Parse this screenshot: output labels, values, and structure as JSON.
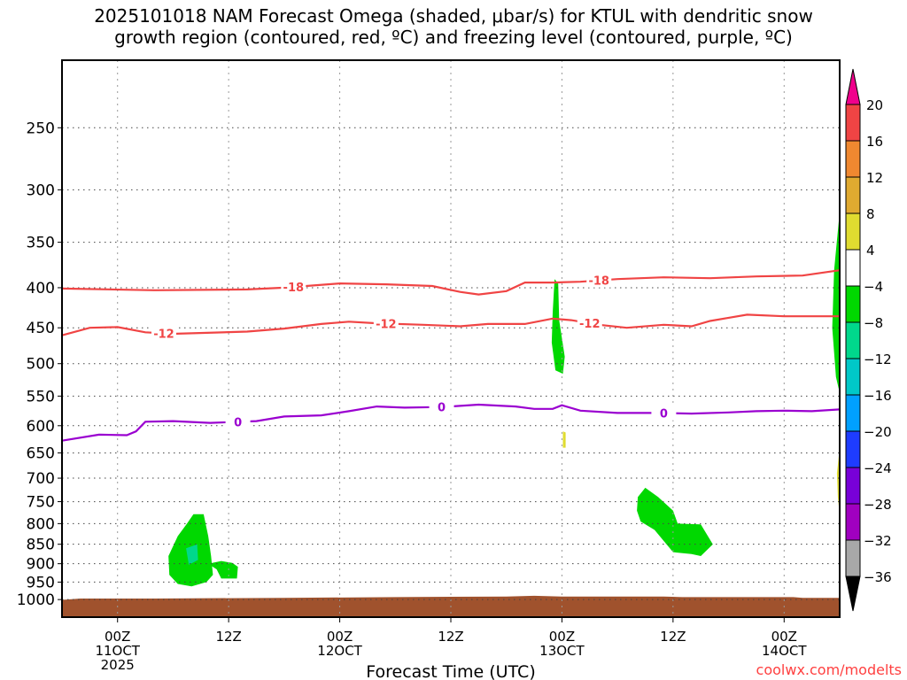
{
  "chart_data": {
    "type": "heatmap",
    "title_line1": "2025101018 NAM Forecast Omega (shaded, μbar/s) for KTUL with dendritic snow",
    "title_line2": "growth region (contoured, red, ºC) and freezing level (contoured, purple, ºC)",
    "xlabel": "Forecast Time (UTC)",
    "credit": "coolwx.com/modelts",
    "x_units": "hours after 2025101018",
    "xlim": [
      0,
      84
    ],
    "ylim_hPa": [
      205,
      1053
    ],
    "y_scale": "log",
    "y_ticks": [
      250,
      300,
      350,
      400,
      450,
      500,
      550,
      600,
      650,
      700,
      750,
      800,
      850,
      900,
      950,
      1000
    ],
    "x_ticks": [
      {
        "hour": 6,
        "label": "00Z",
        "sub": "11OCT",
        "sub2": "2025"
      },
      {
        "hour": 18,
        "label": "12Z"
      },
      {
        "hour": 30,
        "label": "00Z",
        "sub": "12OCT"
      },
      {
        "hour": 42,
        "label": "12Z"
      },
      {
        "hour": 54,
        "label": "00Z",
        "sub": "13OCT"
      },
      {
        "hour": 66,
        "label": "12Z"
      },
      {
        "hour": 78,
        "label": "00Z",
        "sub": "14OCT"
      }
    ],
    "grid": true,
    "colorbar": {
      "labels": [
        "20",
        "16",
        "12",
        "8",
        "4",
        "-4",
        "-8",
        "-12",
        "-16",
        "-20",
        "-24",
        "-28",
        "-32",
        "-36"
      ],
      "colors": [
        "#f04444",
        "#f08830",
        "#e0aa30",
        "#e0dc30",
        "#ffffff",
        "#00d800",
        "#00d88c",
        "#00c8c8",
        "#00a0ff",
        "#1e3cff",
        "#7800d8",
        "#a000c0",
        "#a8a8a8"
      ],
      "over_color": "#f0008c",
      "under_color": "#000000"
    },
    "contours": [
      {
        "name": "-18",
        "color": "#f04444",
        "labels": [
          {
            "hour": 25,
            "text": "-18"
          },
          {
            "hour": 58,
            "text": "-18"
          }
        ],
        "points": [
          [
            0,
            401
          ],
          [
            10,
            403
          ],
          [
            20,
            402
          ],
          [
            24,
            400
          ],
          [
            30,
            395
          ],
          [
            35,
            396
          ],
          [
            40,
            398
          ],
          [
            43,
            405
          ],
          [
            45,
            408
          ],
          [
            48,
            404
          ],
          [
            50,
            394
          ],
          [
            53,
            394
          ],
          [
            56,
            393
          ],
          [
            60,
            390
          ],
          [
            65,
            388
          ],
          [
            70,
            389
          ],
          [
            75,
            387
          ],
          [
            80,
            386
          ],
          [
            84,
            380
          ]
        ]
      },
      {
        "name": "-12",
        "color": "#f04444",
        "labels": [
          {
            "hour": 11,
            "text": "-12"
          },
          {
            "hour": 35,
            "text": "-12"
          },
          {
            "hour": 57,
            "text": "-12"
          }
        ],
        "points": [
          [
            0,
            460
          ],
          [
            3,
            450
          ],
          [
            6,
            449
          ],
          [
            9,
            456
          ],
          [
            12,
            458
          ],
          [
            20,
            455
          ],
          [
            24,
            451
          ],
          [
            28,
            445
          ],
          [
            31,
            442
          ],
          [
            34,
            444
          ],
          [
            39,
            446
          ],
          [
            43,
            448
          ],
          [
            46,
            445
          ],
          [
            50,
            445
          ],
          [
            53,
            438
          ],
          [
            55,
            440
          ],
          [
            58,
            446
          ],
          [
            61,
            450
          ],
          [
            65,
            446
          ],
          [
            68,
            448
          ],
          [
            70,
            441
          ],
          [
            72,
            437
          ],
          [
            74,
            433
          ],
          [
            78,
            435
          ],
          [
            84,
            435
          ]
        ]
      },
      {
        "name": "0",
        "color": "#9a00d0",
        "labels": [
          {
            "hour": 19,
            "text": "0"
          },
          {
            "hour": 41,
            "text": "0"
          },
          {
            "hour": 65,
            "text": "0"
          }
        ],
        "points": [
          [
            0,
            627
          ],
          [
            4,
            616
          ],
          [
            7,
            617
          ],
          [
            8,
            610
          ],
          [
            9,
            593
          ],
          [
            12,
            592
          ],
          [
            16,
            595
          ],
          [
            21,
            592
          ],
          [
            24,
            584
          ],
          [
            28,
            582
          ],
          [
            31,
            575
          ],
          [
            34,
            567
          ],
          [
            37,
            569
          ],
          [
            41,
            568
          ],
          [
            45,
            564
          ],
          [
            49,
            567
          ],
          [
            51,
            571
          ],
          [
            53,
            571
          ],
          [
            54,
            565
          ],
          [
            56,
            574
          ],
          [
            60,
            578
          ],
          [
            64,
            578
          ],
          [
            68,
            579
          ],
          [
            72,
            577
          ],
          [
            75,
            575
          ],
          [
            78,
            574
          ],
          [
            81,
            575
          ],
          [
            84,
            572
          ]
        ]
      }
    ],
    "shaded_regions": [
      {
        "value_range": "-8 to -4",
        "color": "#00d800",
        "points": [
          [
            11.5,
            880
          ],
          [
            12.5,
            830
          ],
          [
            13.5,
            800
          ],
          [
            14.2,
            778
          ],
          [
            15.3,
            778
          ],
          [
            15.8,
            830
          ],
          [
            16.1,
            880
          ],
          [
            16.3,
            930
          ],
          [
            15.6,
            950
          ],
          [
            14,
            962
          ],
          [
            12.5,
            955
          ],
          [
            11.6,
            930
          ]
        ]
      },
      {
        "value_range": "-8 to -4",
        "color": "#00d800",
        "points": [
          [
            15.8,
            900
          ],
          [
            17.2,
            893
          ],
          [
            18.4,
            898
          ],
          [
            19,
            908
          ],
          [
            18.9,
            940
          ],
          [
            17.2,
            940
          ],
          [
            16.7,
            915
          ]
        ]
      },
      {
        "value_range": "-12 to -8",
        "color": "#00d88c",
        "points": [
          [
            13.4,
            860
          ],
          [
            14.6,
            850
          ],
          [
            14.7,
            890
          ],
          [
            13.7,
            903
          ]
        ]
      },
      {
        "value_range": "-8 to -4",
        "color": "#00d800",
        "points": [
          [
            53.2,
            390
          ],
          [
            53.6,
            395
          ],
          [
            53.7,
            440
          ],
          [
            54.3,
            490
          ],
          [
            54.1,
            515
          ],
          [
            53.3,
            510
          ],
          [
            52.9,
            470
          ],
          [
            53.0,
            430
          ]
        ]
      },
      {
        "value_range": "4 to 8",
        "color": "#e0dc30",
        "points": [
          [
            54.1,
            610
          ],
          [
            54.4,
            612
          ],
          [
            54.4,
            640
          ],
          [
            54.1,
            640
          ]
        ]
      },
      {
        "value_range": "-8 to -4",
        "color": "#00d800",
        "points": [
          [
            62.2,
            740
          ],
          [
            63,
            720
          ],
          [
            64.4,
            740
          ],
          [
            66,
            770
          ],
          [
            66.5,
            800
          ],
          [
            69,
            802
          ],
          [
            70.3,
            850
          ],
          [
            69,
            880
          ],
          [
            68,
            875
          ],
          [
            66,
            870
          ],
          [
            64,
            815
          ],
          [
            62.5,
            795
          ],
          [
            62.1,
            770
          ]
        ]
      },
      {
        "value_range": "-8 to -4",
        "color": "#00d800",
        "points": [
          [
            84,
            320
          ],
          [
            83.4,
            380
          ],
          [
            83.2,
            450
          ],
          [
            83.6,
            520
          ],
          [
            84,
            545
          ]
        ]
      },
      {
        "value_range": "4 to 8",
        "color": "#e0dc30",
        "points": [
          [
            84,
            640
          ],
          [
            83.7,
            690
          ],
          [
            83.8,
            740
          ],
          [
            84,
            780
          ]
        ]
      }
    ],
    "terrain": {
      "color": "#a0522d",
      "surface_pressure": [
        [
          0,
          1001
        ],
        [
          2,
          997
        ],
        [
          10,
          997
        ],
        [
          24,
          995
        ],
        [
          36,
          993
        ],
        [
          48,
          991
        ],
        [
          51,
          989
        ],
        [
          54,
          991
        ],
        [
          65,
          991
        ],
        [
          67,
          993
        ],
        [
          79,
          993
        ],
        [
          80,
          995
        ],
        [
          84,
          995
        ]
      ]
    }
  }
}
